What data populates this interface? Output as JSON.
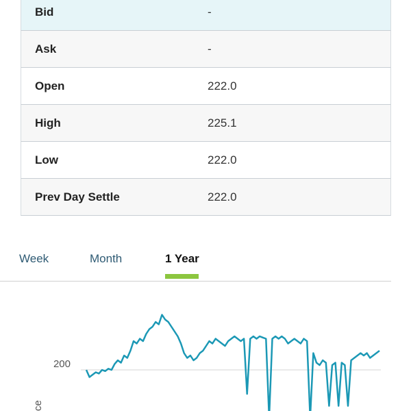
{
  "quote": {
    "rows": [
      {
        "label": "Bid",
        "value": "-"
      },
      {
        "label": "Ask",
        "value": "-"
      },
      {
        "label": "Open",
        "value": "222.0"
      },
      {
        "label": "High",
        "value": "225.1"
      },
      {
        "label": "Low",
        "value": "222.0"
      },
      {
        "label": "Prev Day Settle",
        "value": "222.0"
      }
    ]
  },
  "tabs": [
    {
      "label": "Week"
    },
    {
      "label": "Month"
    },
    {
      "label": "1 Year",
      "active": true
    }
  ],
  "colors": {
    "accent": "#8cc63f",
    "line": "#1b98b5",
    "highlight_row": "#e6f5f8",
    "tab_text": "#2f5b74"
  },
  "chart_data": {
    "type": "line",
    "y_tick_label": "200",
    "y_axis_title": "ce",
    "grid": true,
    "series": [
      {
        "values": [
          200,
          194,
          196,
          198,
          197,
          200,
          199,
          201,
          200,
          205,
          208,
          206,
          212,
          210,
          216,
          224,
          222,
          226,
          224,
          230,
          234,
          236,
          240,
          238,
          246,
          242,
          240,
          236,
          232,
          228,
          222,
          214,
          210,
          212,
          208,
          210,
          214,
          216,
          220,
          224,
          222,
          226,
          224,
          222,
          220,
          224,
          226,
          228,
          226,
          224,
          226,
          180,
          226,
          228,
          226,
          228,
          227,
          226,
          160,
          226,
          228,
          226,
          228,
          226,
          222,
          224,
          226,
          224,
          222,
          226,
          224,
          160,
          214,
          206,
          204,
          208,
          206,
          170,
          204,
          206,
          170,
          206,
          204,
          170,
          208,
          210,
          212,
          214,
          212,
          214,
          210,
          212,
          214,
          216
        ]
      }
    ]
  }
}
